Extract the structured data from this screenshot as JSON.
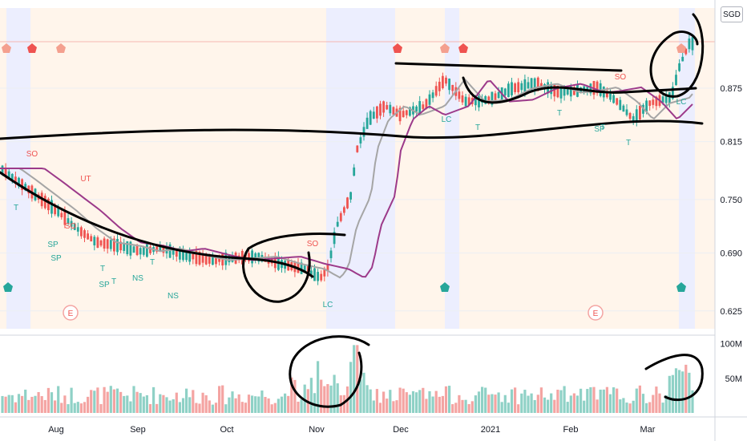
{
  "currency": "SGD",
  "chart_data": {
    "type": "candlestick",
    "price_axis": {
      "ticks": [
        "0.875",
        "0.815",
        "0.750",
        "0.690",
        "0.625"
      ],
      "values": [
        0.875,
        0.815,
        0.75,
        0.69,
        0.625
      ],
      "range": [
        0.605,
        0.965
      ]
    },
    "volume_axis": {
      "ticks": [
        "100M",
        "50M"
      ],
      "values": [
        100,
        50
      ],
      "range": [
        0,
        110
      ]
    },
    "x_axis_labels": [
      "Aug",
      "Sep",
      "Oct",
      "Nov",
      "Dec",
      "2021",
      "Feb",
      "Mar"
    ],
    "earnings_marker": "E",
    "signal_labels": [
      "SO",
      "T",
      "SP",
      "SP",
      "UT",
      "SO",
      "SP",
      "T",
      "T",
      "NS",
      "T",
      "NS",
      "SO",
      "LC",
      "LC",
      "T",
      "T",
      "T",
      "SO",
      "SP",
      "T",
      "LC"
    ],
    "series_names": [],
    "colors": {
      "up": "#26a69a",
      "down": "#ef5350",
      "ma_fast": "#a5a5a5",
      "ma_slow": "#9c3a8a",
      "volume_up": "#8fd1c6",
      "volume_down": "#f4a4a2",
      "highlight_band": "#eceefe",
      "session_band": "#fff5eb"
    }
  }
}
